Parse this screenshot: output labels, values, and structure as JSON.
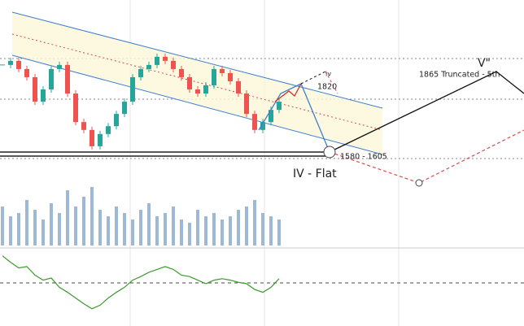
{
  "chart_data": [
    {
      "type": "candlestick",
      "ylim": [
        1574,
        2053
      ],
      "up_color": "#26a69a",
      "down_color": "#ef5350",
      "values": [
        1885,
        1898,
        1872,
        1846,
        1768,
        1807,
        1872,
        1885,
        1794,
        1703,
        1678,
        1626,
        1665,
        1690,
        1729,
        1768,
        1846,
        1872,
        1885,
        1911,
        1898,
        1872,
        1846,
        1807,
        1794,
        1820,
        1872,
        1859,
        1833,
        1794,
        1729,
        1678,
        1703,
        1742,
        1768
      ],
      "annotations": [
        "V\"",
        "1865 Truncated - 5th",
        "1820",
        "iv",
        "IV - Flat",
        "1580 - 1605"
      ]
    },
    {
      "type": "bar",
      "ylim": [
        0,
        100
      ],
      "color": "#9fb8d6",
      "values": [
        60,
        45,
        50,
        70,
        55,
        40,
        65,
        50,
        85,
        60,
        75,
        90,
        55,
        45,
        60,
        50,
        40,
        55,
        65,
        45,
        50,
        60,
        40,
        35,
        55,
        45,
        50,
        40,
        45,
        55,
        60,
        70,
        50,
        45,
        40
      ]
    },
    {
      "type": "line",
      "ylim": [
        0,
        100
      ],
      "color": "#3a9a2a",
      "values": [
        89,
        80,
        72,
        74,
        62,
        55,
        58,
        45,
        38,
        30,
        22,
        15,
        20,
        30,
        38,
        45,
        55,
        60,
        66,
        70,
        74,
        70,
        62,
        60,
        55,
        50,
        55,
        57,
        55,
        52,
        50,
        42,
        38,
        45,
        57
      ]
    }
  ]
}
